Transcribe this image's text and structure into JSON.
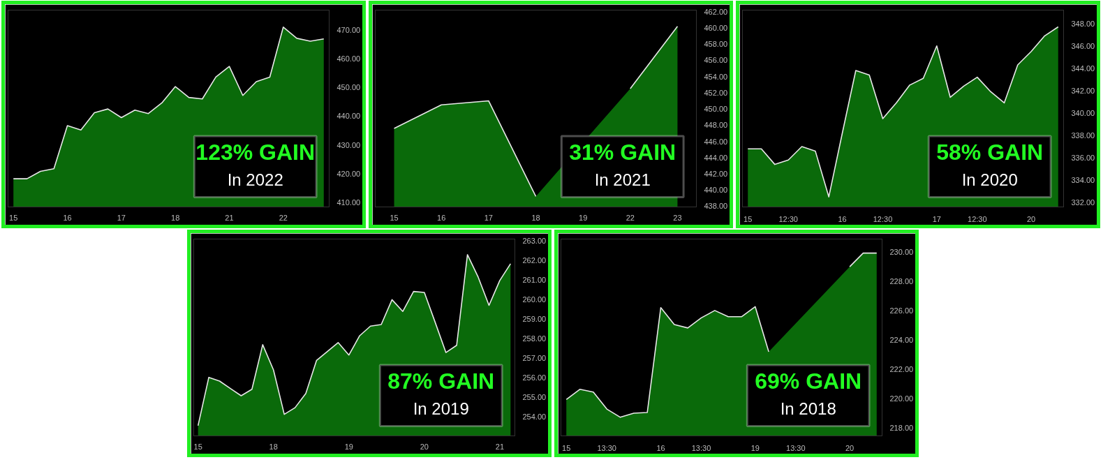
{
  "chart_data": [
    {
      "type": "area",
      "color": "#0c7d0c",
      "ylim": [
        408.4,
        476.9
      ],
      "categories": [
        "15",
        null,
        null,
        null,
        "16",
        null,
        null,
        null,
        "17",
        null,
        null,
        null,
        "18",
        null,
        null,
        null,
        "21",
        null,
        null,
        null,
        "22",
        null,
        null,
        null
      ],
      "yticks": [
        {
          "value": 410,
          "label": "410.00"
        },
        {
          "value": 420,
          "label": "420.00"
        },
        {
          "value": 430,
          "label": "430.00"
        },
        {
          "value": 440,
          "label": "440.00"
        },
        {
          "value": 450,
          "label": "450.00"
        },
        {
          "value": 460,
          "label": "460.00"
        },
        {
          "value": 470,
          "label": "470.00"
        }
      ],
      "values": [
        418.2,
        418.2,
        420.8,
        421.7,
        436.7,
        435.2,
        441.2,
        442.5,
        439.5,
        442.1,
        440.9,
        444.6,
        450.3,
        446.5,
        446.0,
        453.6,
        457.3,
        447.2,
        452.0,
        453.6,
        471.0,
        467.1,
        466.1,
        466.9
      ],
      "annotations": [
        "123% GAIN",
        "In 2022"
      ]
    },
    {
      "type": "area",
      "color": "#0c7d0c",
      "ylim": [
        437.9,
        462.2
      ],
      "categories": [
        "15",
        "16",
        "17",
        "18",
        "19",
        "22",
        "23"
      ],
      "yticks": [
        {
          "value": 438,
          "label": "438.00"
        },
        {
          "value": 440,
          "label": "440.00"
        },
        {
          "value": 442,
          "label": "442.00"
        },
        {
          "value": 444,
          "label": "444.00"
        },
        {
          "value": 446,
          "label": "446.00"
        },
        {
          "value": 448,
          "label": "448.00"
        },
        {
          "value": 450,
          "label": "450.00"
        },
        {
          "value": 452,
          "label": "452.00"
        },
        {
          "value": 454,
          "label": "454.00"
        },
        {
          "value": 456,
          "label": "456.00"
        },
        {
          "value": 458,
          "label": "458.00"
        },
        {
          "value": 460,
          "label": "460.00"
        },
        {
          "value": 462,
          "label": "462.00"
        }
      ],
      "values": [
        447.6,
        450.5,
        451.0,
        439.2,
        null,
        452.5,
        460.2
      ],
      "annotations": [
        "31% GAIN",
        "In 2021"
      ]
    },
    {
      "type": "area",
      "color": "#0c7d0c",
      "ylim": [
        331.6,
        349.2
      ],
      "categories": [
        "15",
        null,
        null,
        "12:30",
        null,
        null,
        null,
        "16",
        null,
        null,
        "12:30",
        null,
        null,
        null,
        "17",
        null,
        null,
        "12:30",
        null,
        null,
        null,
        "20",
        null,
        null
      ],
      "yticks": [
        {
          "value": 332,
          "label": "332.00"
        },
        {
          "value": 334,
          "label": "334.00"
        },
        {
          "value": 336,
          "label": "336.00"
        },
        {
          "value": 338,
          "label": "338.00"
        },
        {
          "value": 340,
          "label": "340.00"
        },
        {
          "value": 342,
          "label": "342.00"
        },
        {
          "value": 344,
          "label": "344.00"
        },
        {
          "value": 346,
          "label": "346.00"
        },
        {
          "value": 348,
          "label": "348.00"
        }
      ],
      "values": [
        336.8,
        336.8,
        335.4,
        335.8,
        337.0,
        336.6,
        332.5,
        338.2,
        343.8,
        343.4,
        339.5,
        340.9,
        342.5,
        343.1,
        346.0,
        341.4,
        342.4,
        343.2,
        341.9,
        340.9,
        344.3,
        345.5,
        346.9,
        347.7
      ],
      "annotations": [
        "58% GAIN",
        "In 2020"
      ]
    },
    {
      "type": "area",
      "color": "#0c7d0c",
      "ylim": [
        253.03,
        263.09
      ],
      "categories": [
        "15",
        null,
        null,
        null,
        null,
        null,
        null,
        "18",
        null,
        null,
        null,
        null,
        null,
        null,
        "19",
        null,
        null,
        null,
        null,
        null,
        null,
        "20",
        null,
        null,
        null,
        null,
        null,
        null,
        "21",
        null
      ],
      "yticks": [
        {
          "value": 254,
          "label": "254.00"
        },
        {
          "value": 255,
          "label": "255.00"
        },
        {
          "value": 256,
          "label": "256.00"
        },
        {
          "value": 257,
          "label": "257.00"
        },
        {
          "value": 258,
          "label": "258.00"
        },
        {
          "value": 259,
          "label": "259.00"
        },
        {
          "value": 260,
          "label": "260.00"
        },
        {
          "value": 261,
          "label": "261.00"
        },
        {
          "value": 262,
          "label": "262.00"
        },
        {
          "value": 263,
          "label": "263.00"
        }
      ],
      "values": [
        253.55,
        256.02,
        255.83,
        255.45,
        255.08,
        255.41,
        257.69,
        256.4,
        254.13,
        254.47,
        255.2,
        256.89,
        257.34,
        257.8,
        257.16,
        258.15,
        258.64,
        258.72,
        259.99,
        259.39,
        260.41,
        260.36,
        258.84,
        257.29,
        257.66,
        262.29,
        261.14,
        259.7,
        260.97,
        261.83
      ],
      "annotations": [
        "87% GAIN",
        "In 2019"
      ]
    },
    {
      "type": "area",
      "color": "#0c7d0c",
      "ylim": [
        217.44,
        230.88
      ],
      "categories": [
        "15",
        null,
        null,
        "13:30",
        null,
        null,
        null,
        "16",
        null,
        null,
        "13:30",
        null,
        null,
        null,
        "19",
        null,
        null,
        "13:30",
        null,
        null,
        null,
        "20",
        null,
        null
      ],
      "yticks": [
        {
          "value": 218,
          "label": "218.00"
        },
        {
          "value": 220,
          "label": "220.00"
        },
        {
          "value": 222,
          "label": "222.00"
        },
        {
          "value": 224,
          "label": "224.00"
        },
        {
          "value": 226,
          "label": "226.00"
        },
        {
          "value": 228,
          "label": "228.00"
        },
        {
          "value": 230,
          "label": "230.00"
        }
      ],
      "values": [
        219.92,
        220.62,
        220.43,
        219.27,
        218.71,
        218.99,
        219.04,
        226.2,
        225.04,
        224.81,
        225.5,
        226.0,
        225.58,
        225.58,
        226.26,
        223.18,
        null,
        null,
        null,
        null,
        null,
        228.99,
        229.92,
        229.92
      ],
      "annotations": [
        "69% GAIN",
        "In 2018"
      ]
    }
  ]
}
